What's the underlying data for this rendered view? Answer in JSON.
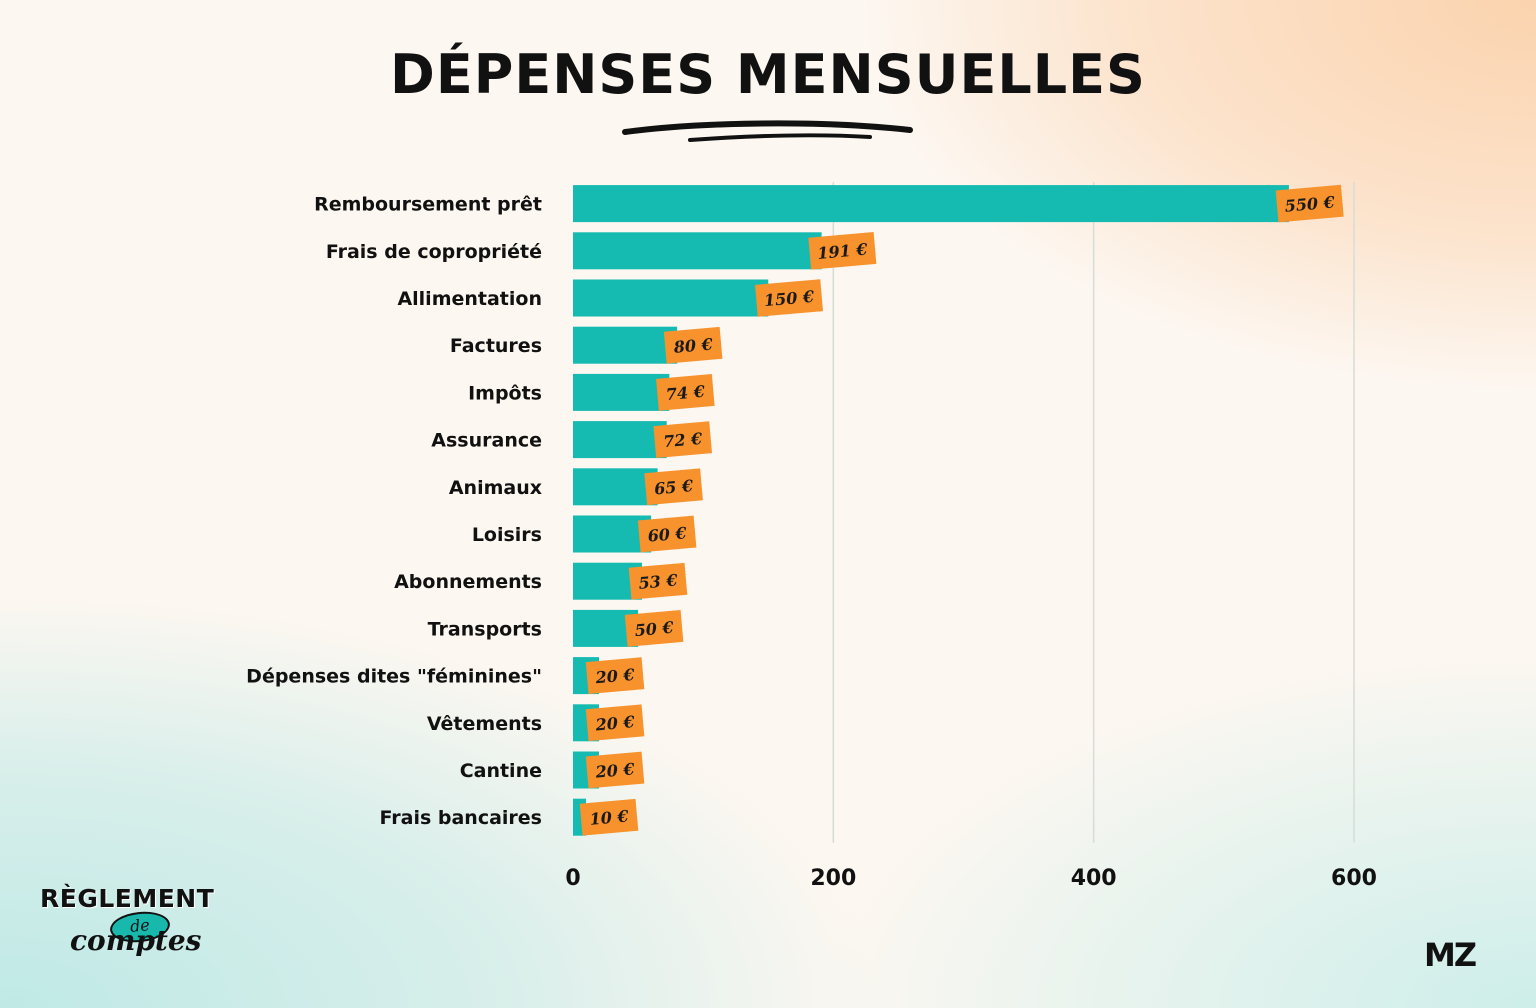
{
  "chart_data": {
    "type": "bar",
    "orientation": "horizontal",
    "title": "DÉPENSES MENSUELLES",
    "categories": [
      "Remboursement prêt",
      "Frais de copropriété",
      "Allimentation",
      "Factures",
      "Impôts",
      "Assurance",
      "Animaux",
      "Loisirs",
      "Abonnements",
      "Transports",
      "Dépenses dites \"féminines\"",
      "Vêtements",
      "Cantine",
      "Frais bancaires"
    ],
    "values": [
      550,
      191,
      150,
      80,
      74,
      72,
      65,
      60,
      53,
      50,
      20,
      20,
      20,
      10
    ],
    "value_labels": [
      "550 €",
      "191 €",
      "150 €",
      "80 €",
      "74 €",
      "72 €",
      "65 €",
      "60 €",
      "53 €",
      "50 €",
      "20 €",
      "20 €",
      "20 €",
      "10 €"
    ],
    "xlim": [
      0,
      600
    ],
    "xticks": [
      "0",
      "200",
      "400",
      "600"
    ],
    "xlabel": "",
    "ylabel": "",
    "grid": true,
    "legend": "none"
  },
  "colors": {
    "bar": "#15bab0",
    "label_tag": "#f7922d",
    "grid": "#d6dcd9",
    "text": "#111111"
  },
  "branding": {
    "line1": "RÈGLEMENT",
    "connector": "de",
    "line2": "comptes",
    "mark": "MZ"
  }
}
